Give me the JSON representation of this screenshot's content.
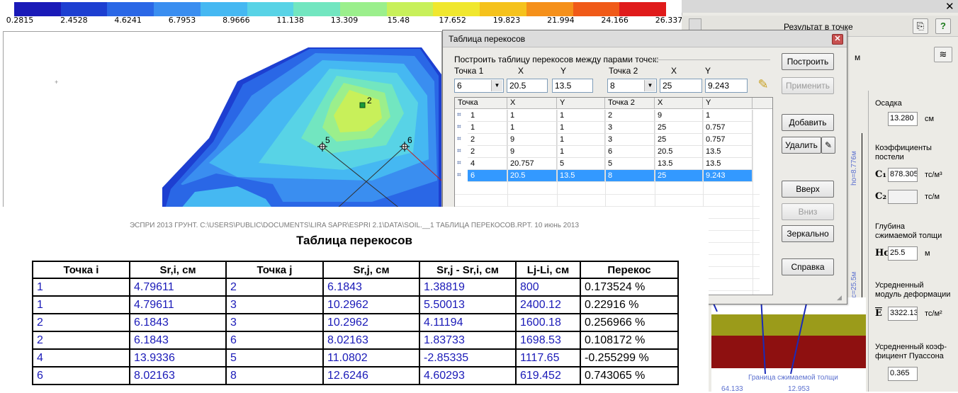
{
  "scale": {
    "colors": [
      "#1a1ab8",
      "#1d3fd1",
      "#2a67e6",
      "#3a8ef0",
      "#45b8f2",
      "#58d3e6",
      "#72e6c0",
      "#9bef8c",
      "#c8f05a",
      "#f0e72e",
      "#f5c21c",
      "#f5901a",
      "#f05a18",
      "#e01b1b"
    ],
    "ticks": [
      "0.2815",
      "2.4528",
      "4.6241",
      "6.7953",
      "8.9666",
      "11.138",
      "13.309",
      "15.48",
      "17.652",
      "19.823",
      "21.994",
      "24.166",
      "26.337"
    ]
  },
  "map": {
    "points": [
      {
        "id": "map-point-2",
        "label": "2"
      },
      {
        "id": "map-point-5",
        "label": "5"
      },
      {
        "id": "map-point-6",
        "label": "6"
      }
    ]
  },
  "right_panel": {
    "header": "Результат в точке",
    "help_label": "?",
    "unit_m": "м",
    "settlement_label": "Осадка",
    "settlement_value": "13.280",
    "settlement_unit": "см",
    "bed_coeff_label_1": "Коэффициенты",
    "bed_coeff_label_2": "постели",
    "c1_symbol": "C₁",
    "c1_value": "878.305",
    "c1_unit": "тс/м³",
    "c2_symbol": "C₂",
    "c2_value": "",
    "c2_unit": "тс/м",
    "depth_label_1": "Глубина",
    "depth_label_2": "сжимаемой толщи",
    "hc_symbol": "Hc",
    "hc_value": "25.5",
    "hc_unit": "м",
    "modulus_label_1": "Усредненный",
    "modulus_label_2": "модуль деформации",
    "e_symbol": "E",
    "e_value": "3322.13",
    "e_unit": "тс/м²",
    "poisson_label_1": "Усредненный коэф-",
    "poisson_label_2": "фициент Пуассона",
    "poisson_value": "0.365",
    "axis_label_top": "ho=8.776м",
    "axis_label_bottom": "Hc=25.5м",
    "boundary_label": "Граница сжимаемой толщи",
    "bottom_value_left": "64.133",
    "bottom_value_right": "12.953"
  },
  "dialog": {
    "title": "Таблица перекосов",
    "close_label": "✕",
    "group_label": "Построить таблицу перекосов между парами точек:",
    "point1_label": "Точка 1",
    "x_label": "X",
    "y_label": "Y",
    "point2_label": "Точка 2",
    "point1_value": "6",
    "x1_value": "20.5",
    "y1_value": "13.5",
    "point2_value": "8",
    "x2_value": "25",
    "y2_value": "9.243",
    "buttons": {
      "build": "Построить",
      "apply": "Применить",
      "add": "Добавить",
      "delete": "Удалить",
      "up": "Вверх",
      "down": "Вниз",
      "mirror": "Зеркально",
      "help": "Справка"
    },
    "grid_headers": [
      "Точка",
      "X",
      "Y",
      "Точка 2",
      "X",
      "Y"
    ],
    "grid_rows": [
      [
        "1",
        "1",
        "1",
        "2",
        "9",
        "1"
      ],
      [
        "1",
        "1",
        "1",
        "3",
        "25",
        "0.757"
      ],
      [
        "2",
        "9",
        "1",
        "3",
        "25",
        "0.757"
      ],
      [
        "2",
        "9",
        "1",
        "6",
        "20.5",
        "13.5"
      ],
      [
        "4",
        "20.757",
        "5",
        "5",
        "13.5",
        "13.5"
      ],
      [
        "6",
        "20.5",
        "13.5",
        "8",
        "25",
        "9.243"
      ]
    ]
  },
  "report": {
    "path": "ЭСПРИ 2013 ГРУНТ. C:\\USERS\\PUBLIC\\DOCUMENTS\\LIRA SAPR\\ESPRI 2.1\\DATA\\SOIL.__1 ТАБЛИЦА ПЕРЕКОСОВ.RPT. 10 июнь 2013",
    "title": "Таблица перекосов",
    "headers": [
      "Точка i",
      "Sr,i, см",
      "Точка j",
      "Sr,j, см",
      "Sr,j - Sr,i, см",
      "Lj-Li, см",
      "Перекос"
    ],
    "rows": [
      [
        "1",
        "4.79611",
        "2",
        "6.1843",
        "1.38819",
        "800",
        "0.173524 %"
      ],
      [
        "1",
        "4.79611",
        "3",
        "10.2962",
        "5.50013",
        "2400.12",
        "0.22916 %"
      ],
      [
        "2",
        "6.1843",
        "3",
        "10.2962",
        "4.11194",
        "1600.18",
        "0.256966 %"
      ],
      [
        "2",
        "6.1843",
        "6",
        "8.02163",
        "1.83733",
        "1698.53",
        "0.108172 %"
      ],
      [
        "4",
        "13.9336",
        "5",
        "11.0802",
        "-2.85335",
        "1117.65",
        "-0.255299 %"
      ],
      [
        "6",
        "8.02163",
        "8",
        "12.6246",
        "4.60293",
        "619.452",
        "0.743065 %"
      ]
    ]
  }
}
